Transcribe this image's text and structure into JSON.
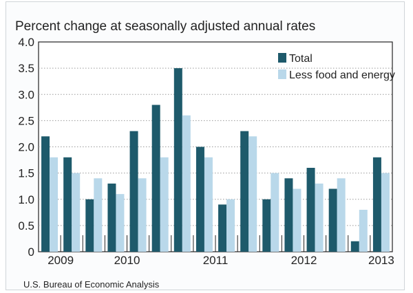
{
  "chart_data": {
    "type": "bar",
    "title": "Percent change at seasonally adjusted annual rates",
    "source": "U.S. Bureau of Economic Analysis",
    "ylim": [
      0,
      4.0
    ],
    "yticks": [
      "0",
      "0.5",
      "1.0",
      "1.5",
      "2.0",
      "2.5",
      "3.0",
      "3.5",
      "4.0"
    ],
    "year_labels": [
      "2009",
      "2010",
      "2011",
      "2012",
      "2013"
    ],
    "grid": true,
    "legend_position": "top-right",
    "series": [
      {
        "name": "Total",
        "color": "#1e5a6b",
        "values": [
          2.2,
          1.8,
          1.0,
          1.3,
          2.3,
          2.8,
          3.5,
          2.0,
          0.9,
          2.3,
          1.0,
          1.4,
          1.6,
          1.2,
          0.2,
          1.8
        ]
      },
      {
        "name": "Less food and energy",
        "color": "#b9d8ea",
        "values": [
          1.8,
          1.5,
          1.4,
          1.1,
          1.4,
          1.8,
          2.6,
          1.8,
          1.0,
          2.2,
          1.5,
          1.2,
          1.3,
          1.4,
          0.8,
          1.5
        ]
      }
    ]
  }
}
